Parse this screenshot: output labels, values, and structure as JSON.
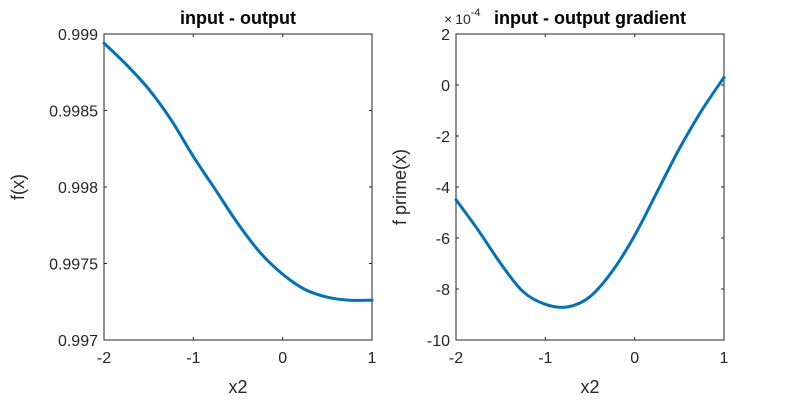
{
  "figure": {
    "background": "#ffffff",
    "line_color": "#0072bd",
    "axes_color": "#262626"
  },
  "chart_data": [
    {
      "type": "line",
      "title": "input - output",
      "xlabel": "x2",
      "ylabel": "f(x)",
      "xlim": [
        -2,
        1
      ],
      "ylim": [
        0.997,
        0.999
      ],
      "xticks": [
        -2,
        -1,
        0,
        1
      ],
      "xtick_labels": [
        "-2",
        "-1",
        "0",
        "1"
      ],
      "yticks": [
        0.997,
        0.9975,
        0.998,
        0.9985,
        0.999
      ],
      "ytick_labels": [
        "0.997",
        "0.9975",
        "0.998",
        "0.9985",
        "0.999"
      ],
      "grid": false,
      "series": [
        {
          "color": "#0072bd",
          "x": [
            -2,
            -1.75,
            -1.5,
            -1.25,
            -1,
            -0.75,
            -0.5,
            -0.25,
            0,
            0.25,
            0.5,
            0.75,
            1
          ],
          "y": [
            0.99894,
            0.9988,
            0.99864,
            0.99844,
            0.9982,
            0.99798,
            0.99776,
            0.99757,
            0.99743,
            0.99733,
            0.99728,
            0.99726,
            0.99726
          ]
        }
      ]
    },
    {
      "type": "line",
      "title": "input - output gradient",
      "xlabel": "x2",
      "ylabel": "f prime(x)",
      "xlim": [
        -2,
        1
      ],
      "ylim": [
        -10,
        2
      ],
      "xticks": [
        -2,
        -1,
        0,
        1
      ],
      "xtick_labels": [
        "-2",
        "-1",
        "0",
        "1"
      ],
      "yticks": [
        -10,
        -8,
        -6,
        -4,
        -2,
        0,
        2
      ],
      "ytick_labels": [
        "-10",
        "-8",
        "-6",
        "-4",
        "-2",
        "0",
        "2"
      ],
      "y_exponent_multiplier": "×",
      "y_exponent_base": "10",
      "y_exponent_power": "-4",
      "grid": false,
      "series": [
        {
          "color": "#0072bd",
          "x": [
            -2,
            -1.75,
            -1.5,
            -1.25,
            -1,
            -0.75,
            -0.5,
            -0.25,
            0,
            0.25,
            0.5,
            0.75,
            1
          ],
          "y": [
            -4.5,
            -5.7,
            -7.0,
            -8.1,
            -8.6,
            -8.7,
            -8.3,
            -7.3,
            -5.9,
            -4.2,
            -2.5,
            -1.0,
            0.3
          ]
        }
      ]
    }
  ]
}
